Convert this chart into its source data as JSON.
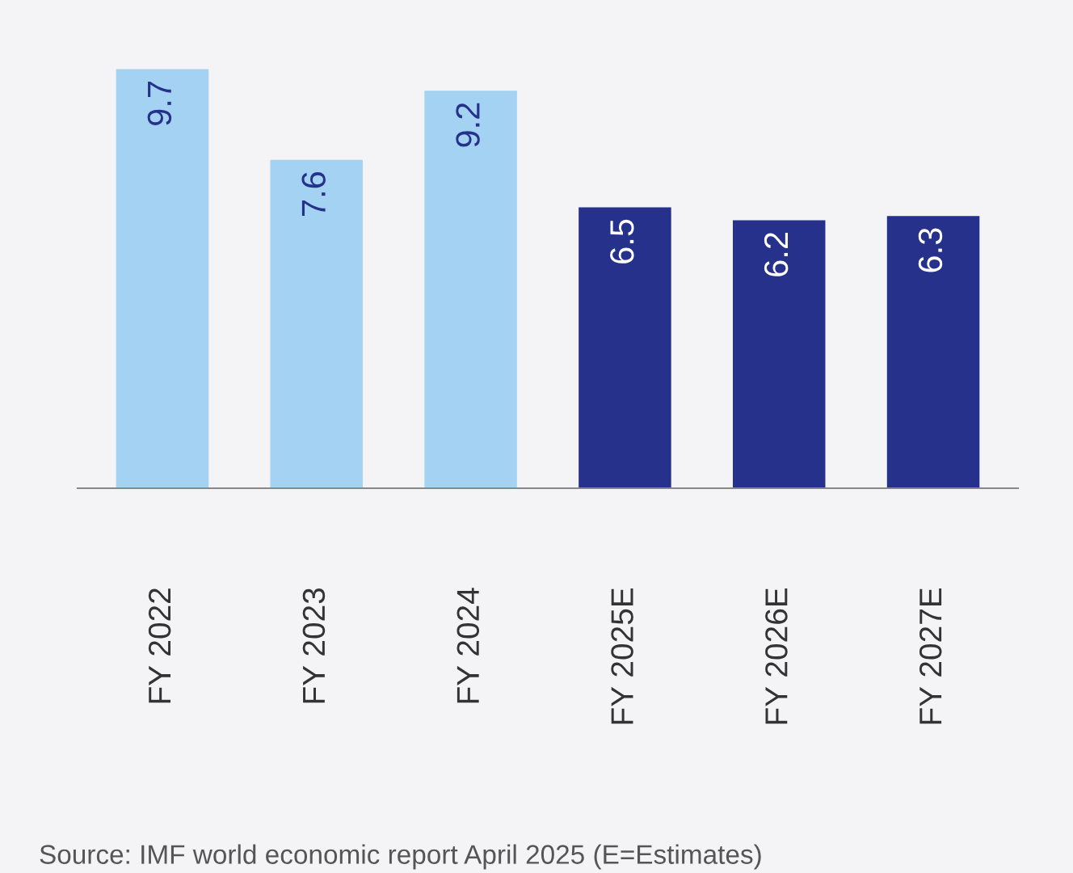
{
  "chart_data": {
    "type": "bar",
    "categories": [
      "FY 2022",
      "FY 2023",
      "FY 2024",
      "FY 2025E",
      "FY 2026E",
      "FY 2027E"
    ],
    "values": [
      9.7,
      7.6,
      9.2,
      6.5,
      6.2,
      6.3
    ],
    "colors": [
      "#a3d2f2",
      "#a3d2f2",
      "#a3d2f2",
      "#25318a",
      "#25318a",
      "#25318a"
    ],
    "data_labels": true,
    "annotations": [
      "Source: IMF world economic report April 2025 (E=Estimates)"
    ]
  }
}
